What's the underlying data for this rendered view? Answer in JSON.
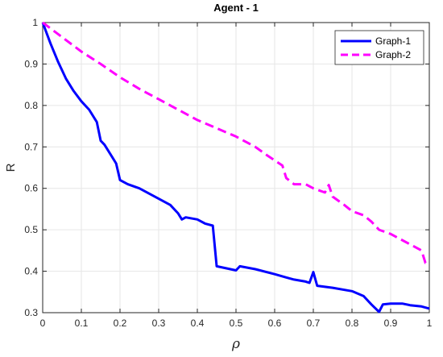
{
  "chart_data": {
    "type": "line",
    "title": "Agent - 1",
    "xlabel": "ρ",
    "ylabel": "R",
    "xlim": [
      0,
      1
    ],
    "ylim": [
      0.3,
      1
    ],
    "grid": true,
    "legend_position": "top-right",
    "x_ticks": [
      "0",
      "0.1",
      "0.2",
      "0.3",
      "0.4",
      "0.5",
      "0.6",
      "0.7",
      "0.8",
      "0.9",
      "1"
    ],
    "y_ticks": [
      "0.3",
      "0.4",
      "0.5",
      "0.6",
      "0.7",
      "0.8",
      "0.9",
      "1"
    ],
    "series": [
      {
        "name": "Graph-1",
        "color": "#0000ff",
        "style": "solid",
        "points": [
          [
            0,
            1
          ],
          [
            0.02,
            0.95
          ],
          [
            0.04,
            0.905
          ],
          [
            0.06,
            0.865
          ],
          [
            0.08,
            0.835
          ],
          [
            0.1,
            0.81
          ],
          [
            0.12,
            0.79
          ],
          [
            0.14,
            0.76
          ],
          [
            0.15,
            0.715
          ],
          [
            0.16,
            0.705
          ],
          [
            0.18,
            0.675
          ],
          [
            0.19,
            0.66
          ],
          [
            0.2,
            0.62
          ],
          [
            0.22,
            0.61
          ],
          [
            0.25,
            0.6
          ],
          [
            0.3,
            0.575
          ],
          [
            0.33,
            0.56
          ],
          [
            0.35,
            0.54
          ],
          [
            0.36,
            0.525
          ],
          [
            0.37,
            0.53
          ],
          [
            0.4,
            0.525
          ],
          [
            0.42,
            0.515
          ],
          [
            0.44,
            0.51
          ],
          [
            0.45,
            0.412
          ],
          [
            0.5,
            0.402
          ],
          [
            0.51,
            0.412
          ],
          [
            0.55,
            0.405
          ],
          [
            0.6,
            0.393
          ],
          [
            0.63,
            0.385
          ],
          [
            0.65,
            0.38
          ],
          [
            0.68,
            0.375
          ],
          [
            0.69,
            0.372
          ],
          [
            0.7,
            0.398
          ],
          [
            0.71,
            0.365
          ],
          [
            0.75,
            0.36
          ],
          [
            0.8,
            0.352
          ],
          [
            0.83,
            0.34
          ],
          [
            0.85,
            0.32
          ],
          [
            0.87,
            0.302
          ],
          [
            0.88,
            0.32
          ],
          [
            0.9,
            0.322
          ],
          [
            0.93,
            0.322
          ],
          [
            0.95,
            0.318
          ],
          [
            0.98,
            0.315
          ],
          [
            1.0,
            0.31
          ]
        ]
      },
      {
        "name": "Graph-2",
        "color": "#ff00ff",
        "style": "dashed",
        "points": [
          [
            0,
            1
          ],
          [
            0.05,
            0.965
          ],
          [
            0.1,
            0.93
          ],
          [
            0.15,
            0.9
          ],
          [
            0.2,
            0.868
          ],
          [
            0.25,
            0.84
          ],
          [
            0.3,
            0.815
          ],
          [
            0.35,
            0.79
          ],
          [
            0.4,
            0.765
          ],
          [
            0.45,
            0.745
          ],
          [
            0.5,
            0.725
          ],
          [
            0.55,
            0.7
          ],
          [
            0.58,
            0.68
          ],
          [
            0.62,
            0.655
          ],
          [
            0.63,
            0.625
          ],
          [
            0.65,
            0.61
          ],
          [
            0.68,
            0.61
          ],
          [
            0.7,
            0.6
          ],
          [
            0.73,
            0.59
          ],
          [
            0.74,
            0.608
          ],
          [
            0.75,
            0.58
          ],
          [
            0.78,
            0.56
          ],
          [
            0.8,
            0.545
          ],
          [
            0.83,
            0.535
          ],
          [
            0.85,
            0.52
          ],
          [
            0.87,
            0.5
          ],
          [
            0.9,
            0.49
          ],
          [
            0.93,
            0.475
          ],
          [
            0.96,
            0.46
          ],
          [
            0.98,
            0.45
          ],
          [
            0.99,
            0.42
          ],
          [
            1.0,
            0.42
          ]
        ]
      }
    ]
  }
}
